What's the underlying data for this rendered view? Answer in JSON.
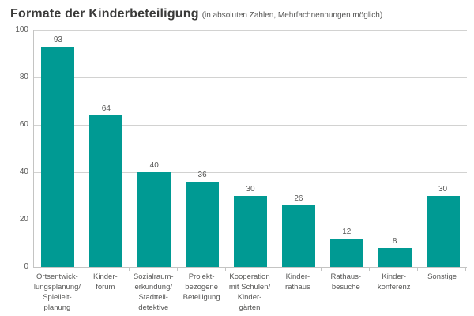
{
  "header": {
    "title": "Formate der Kinderbeteiligung",
    "subtitle": "(in absoluten Zahlen, Mehrfachnennungen möglich)"
  },
  "colors": {
    "bar": "#009a93",
    "title_text": "#3a3a39",
    "body_text": "#575756",
    "gridline": "#d2d2d1",
    "axis": "#c4c4c3"
  },
  "chart_data": {
    "type": "bar",
    "title": "Formate der Kinderbeteiligung",
    "subtitle": "(in absoluten Zahlen, Mehrfachnennungen möglich)",
    "categories": [
      "Ortsentwicklungsplanung/Spielleitplanung",
      "Kinderforum",
      "Sozialraumerkundung/Stadtteildetektive",
      "Projektbezogene Beteiligung",
      "Kooperation mit Schulen/Kindergärten",
      "Kinderrathaus",
      "Rathausbesuche",
      "Kinderkonferenz",
      "Sonstige"
    ],
    "category_label_lines": [
      [
        "Ortsentwick-",
        "lungsplanung/",
        "Spielleit-",
        "planung"
      ],
      [
        "Kinder-",
        "forum"
      ],
      [
        "Sozialraum-",
        "erkundung/",
        "Stadtteil-",
        "detektive"
      ],
      [
        "Projekt-",
        "bezogene",
        "Beteiligung"
      ],
      [
        "Kooperation",
        "mit Schulen/",
        "Kinder-",
        "gärten"
      ],
      [
        "Kinder-",
        "rathaus"
      ],
      [
        "Rathaus-",
        "besuche"
      ],
      [
        "Kinder-",
        "konferenz"
      ],
      [
        "Sonstige"
      ]
    ],
    "values": [
      93,
      64,
      40,
      36,
      30,
      26,
      12,
      8,
      30
    ],
    "xlabel": "",
    "ylabel": "",
    "ylim": [
      0,
      100
    ],
    "yticks": [
      0,
      20,
      40,
      60,
      80,
      100
    ],
    "grid": true,
    "legend": false,
    "bar_color": "#009a93"
  }
}
